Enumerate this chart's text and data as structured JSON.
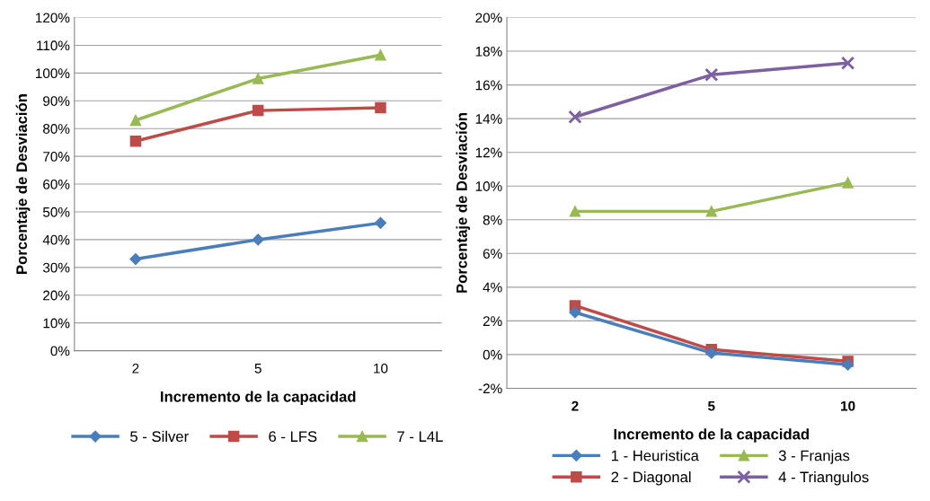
{
  "chart_data": [
    {
      "type": "line",
      "xlabel": "Incremento de la capacidad",
      "ylabel": "Porcentaje de Desviación",
      "categories": [
        "2",
        "5",
        "10"
      ],
      "series": [
        {
          "name": "5 - Silver",
          "color": "#4a7ebb",
          "marker": "diamond",
          "values": [
            33,
            40,
            46
          ]
        },
        {
          "name": "6 - LFS",
          "color": "#be4b48",
          "marker": "square",
          "values": [
            75.5,
            86.5,
            87.5
          ]
        },
        {
          "name": "7 - L4L",
          "color": "#98b954",
          "marker": "triangle",
          "values": [
            83,
            98,
            106.5
          ]
        }
      ],
      "ylim": [
        0,
        120
      ],
      "yticks": [
        {
          "value": 0,
          "label": "0%"
        },
        {
          "value": 10,
          "label": "10%"
        },
        {
          "value": 20,
          "label": "20%"
        },
        {
          "value": 30,
          "label": "30%"
        },
        {
          "value": 40,
          "label": "40%"
        },
        {
          "value": 50,
          "label": "50%"
        },
        {
          "value": 60,
          "label": "60%"
        },
        {
          "value": 70,
          "label": "70%"
        },
        {
          "value": 80,
          "label": "80%"
        },
        {
          "value": 90,
          "label": "90%"
        },
        {
          "value": 100,
          "label": "100%"
        },
        {
          "value": 110,
          "label": "110%"
        },
        {
          "value": 120,
          "label": "120%"
        }
      ],
      "grid": "y",
      "legend": "bottom"
    },
    {
      "type": "line",
      "xlabel": "Incremento de la capacidad",
      "ylabel": "Porcentaje de Desviación",
      "categories": [
        "2",
        "5",
        "10"
      ],
      "series": [
        {
          "name": "1 - Heuristica",
          "color": "#4a7ebb",
          "marker": "diamond",
          "values": [
            2.5,
            0.1,
            -0.6
          ]
        },
        {
          "name": "2 - Diagonal",
          "color": "#be4b48",
          "marker": "square",
          "values": [
            2.9,
            0.3,
            -0.4
          ]
        },
        {
          "name": "3 - Franjas",
          "color": "#98b954",
          "marker": "triangle",
          "values": [
            8.5,
            8.5,
            10.2
          ]
        },
        {
          "name": "4 - Triangulos",
          "color": "#7d60a0",
          "marker": "cross",
          "values": [
            14.1,
            16.6,
            17.3
          ]
        }
      ],
      "ylim": [
        -2,
        20
      ],
      "yticks": [
        {
          "value": -2,
          "label": "-2%"
        },
        {
          "value": 0,
          "label": "0%"
        },
        {
          "value": 2,
          "label": "2%"
        },
        {
          "value": 4,
          "label": "4%"
        },
        {
          "value": 6,
          "label": "6%"
        },
        {
          "value": 8,
          "label": "8%"
        },
        {
          "value": 10,
          "label": "10%"
        },
        {
          "value": 12,
          "label": "12%"
        },
        {
          "value": 14,
          "label": "14%"
        },
        {
          "value": 16,
          "label": "16%"
        },
        {
          "value": 18,
          "label": "18%"
        },
        {
          "value": 20,
          "label": "20%"
        }
      ],
      "grid": "y",
      "legend": "bottom"
    }
  ]
}
